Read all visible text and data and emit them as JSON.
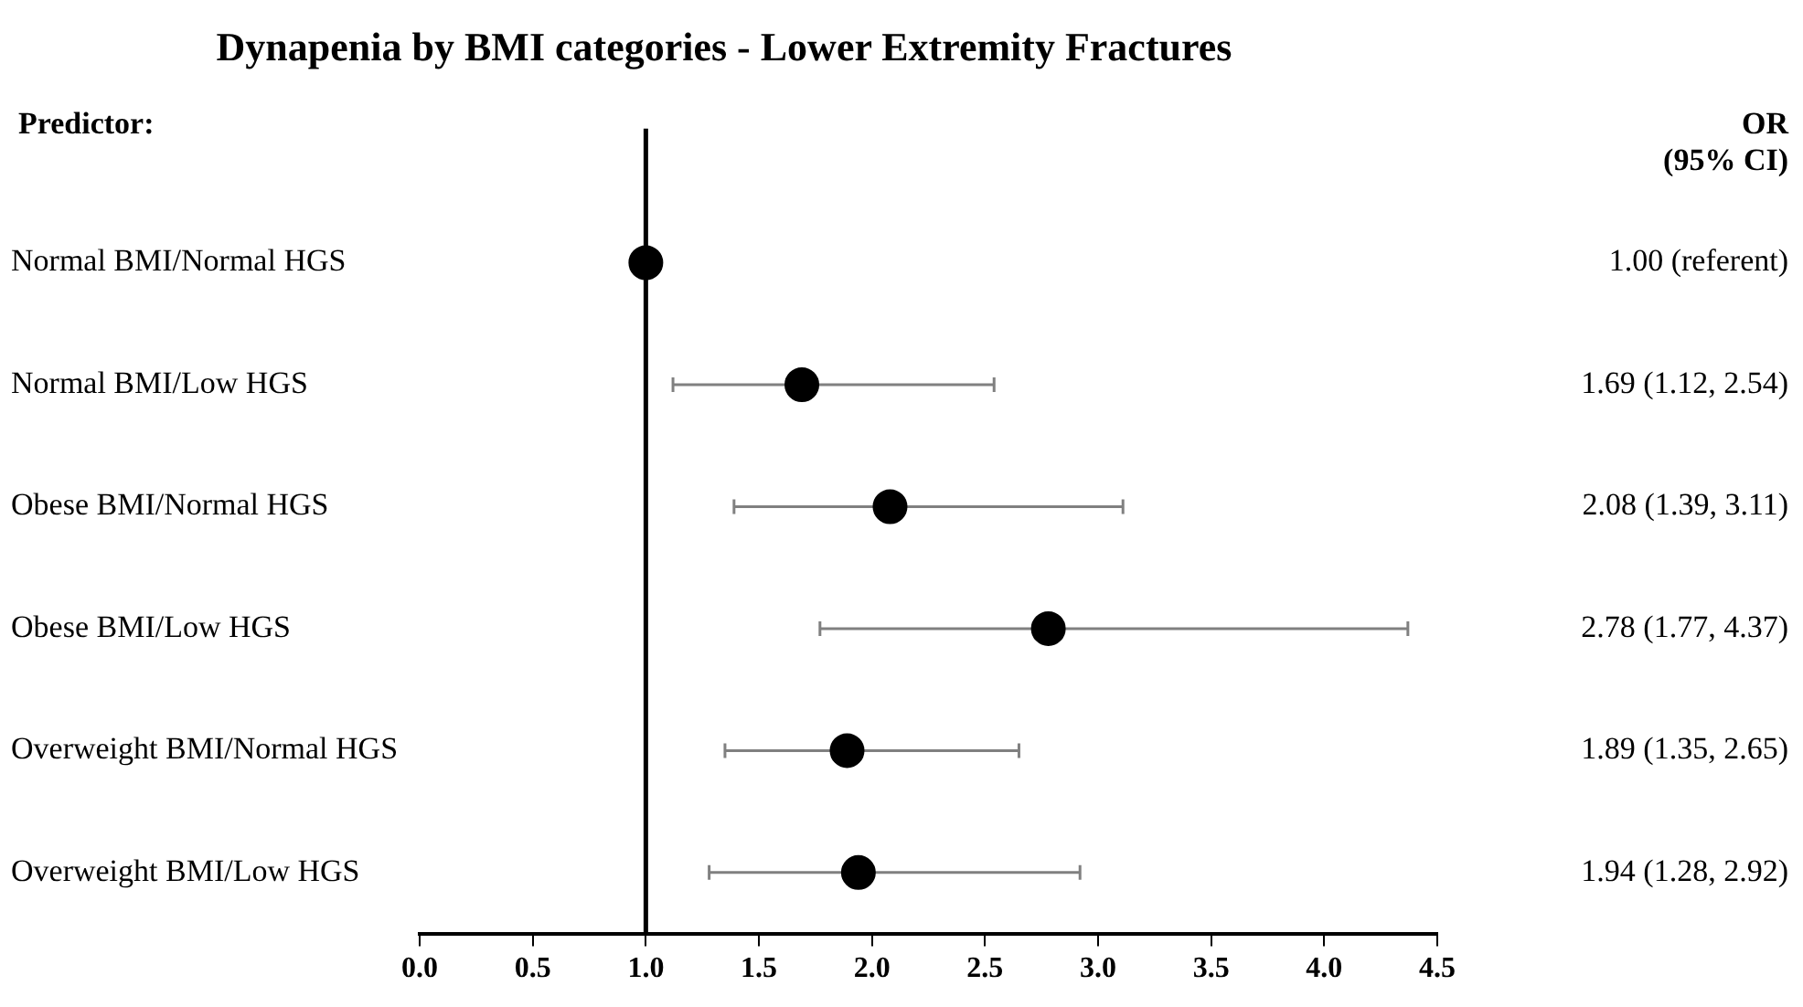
{
  "chart_data": {
    "type": "scatter",
    "orientation": "horizontal",
    "title": "Dynapenia by BMI categories - Lower Extremity Fractures",
    "categories": [
      "Normal BMI/Normal HGS",
      "Normal BMI/Low HGS",
      "Obese BMI/Normal HGS",
      "Obese BMI/Low HGS",
      "Overweight BMI/Normal HGS",
      "Overweight BMI/Low HGS"
    ],
    "values": [
      1.0,
      1.69,
      2.08,
      2.78,
      1.89,
      1.94
    ],
    "errors": [
      null,
      [
        1.12,
        2.54
      ],
      [
        1.39,
        3.11
      ],
      [
        1.77,
        4.37
      ],
      [
        1.35,
        2.65
      ],
      [
        1.28,
        2.92
      ]
    ],
    "value_labels": [
      "1.00 (referent)",
      "1.69 (1.12, 2.54)",
      "2.08 (1.39, 3.11)",
      "2.78 (1.77, 4.37)",
      "1.89 (1.35, 2.65)",
      "1.94 (1.28, 2.92)"
    ],
    "color": "#000000",
    "marker": "circle",
    "xlim": [
      0,
      4.5
    ],
    "xticks": [
      {
        "value": 0,
        "label": "0.0"
      },
      {
        "value": 0.5,
        "label": "0.5"
      },
      {
        "value": 1,
        "label": "1.0"
      },
      {
        "value": 1.5,
        "label": "1.5"
      },
      {
        "value": 2,
        "label": "2.0"
      },
      {
        "value": 2.5,
        "label": "2.5"
      },
      {
        "value": 3,
        "label": "3.0"
      },
      {
        "value": 3.5,
        "label": "3.5"
      },
      {
        "value": 4,
        "label": "4.0"
      },
      {
        "value": 4.5,
        "label": "4.5"
      }
    ],
    "ref_lines": [
      {
        "axis": "x",
        "value": 1,
        "color": "#000000"
      }
    ],
    "annotations": [
      "Predictor:",
      "OR\n(95% CI)"
    ]
  }
}
